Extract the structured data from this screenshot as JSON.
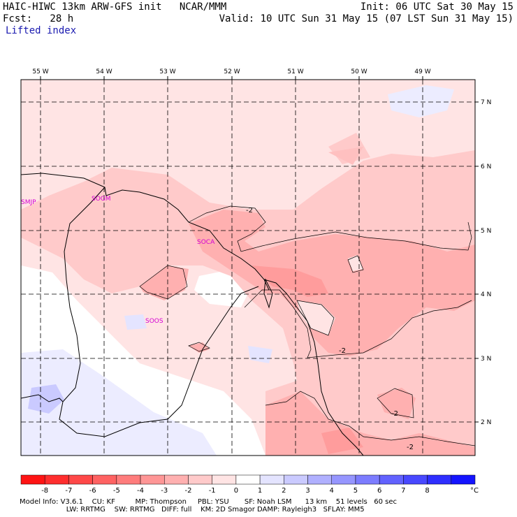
{
  "header": {
    "model_title": "HAIC-HIWC 13km ARW-GFS init   NCAR/MMM",
    "init_time": "Init: 06 UTC Sat 30 May 15",
    "forecast": "Fcst:   28 h",
    "valid_time": "Valid: 10 UTC Sun 31 May 15 (07 LST Sun 31 May 15)",
    "field_name": "Lifted index"
  },
  "map": {
    "longitude_labels": [
      "55 W",
      "54 W",
      "53 W",
      "52 W",
      "51 W",
      "50 W",
      "49 W"
    ],
    "latitude_labels": [
      "7 N",
      "6 N",
      "5 N",
      "4 N",
      "3 N",
      "2 N"
    ],
    "airport_labels": [
      "SMJP",
      "SOGM",
      "SOCA",
      "SOOS"
    ],
    "contour_labels": [
      "-2",
      "-2",
      "-2",
      "-2"
    ]
  },
  "colorbar": {
    "tick_labels": [
      "-8",
      "-7",
      "-6",
      "-5",
      "-4",
      "-3",
      "-2",
      "-1",
      "0",
      "1",
      "2",
      "3",
      "4",
      "5",
      "6",
      "7",
      "8"
    ],
    "unit": "°C",
    "colors": [
      "#ff1414",
      "#ff2e2e",
      "#ff4848",
      "#ff6262",
      "#ff7c7c",
      "#ff9696",
      "#ffb0b0",
      "#ffcaca",
      "#ffe4e4",
      "#ffffff",
      "#e4e4ff",
      "#cacaff",
      "#b0b0ff",
      "#9696ff",
      "#7c7cff",
      "#6262ff",
      "#4848ff",
      "#2e2eff",
      "#1414ff"
    ]
  },
  "footer": {
    "line1": "Model Info: V3.6.1    CU: KF         MP: Thompson     PBL: YSU       SF: Noah LSM      13 km    51 levels   60 sec",
    "line2": "                     LW: RRTMG    SW: RRTMG   DIFF: full    KM: 2D Smagor DAMP: Rayleigh3   SFLAY: MM5"
  }
}
